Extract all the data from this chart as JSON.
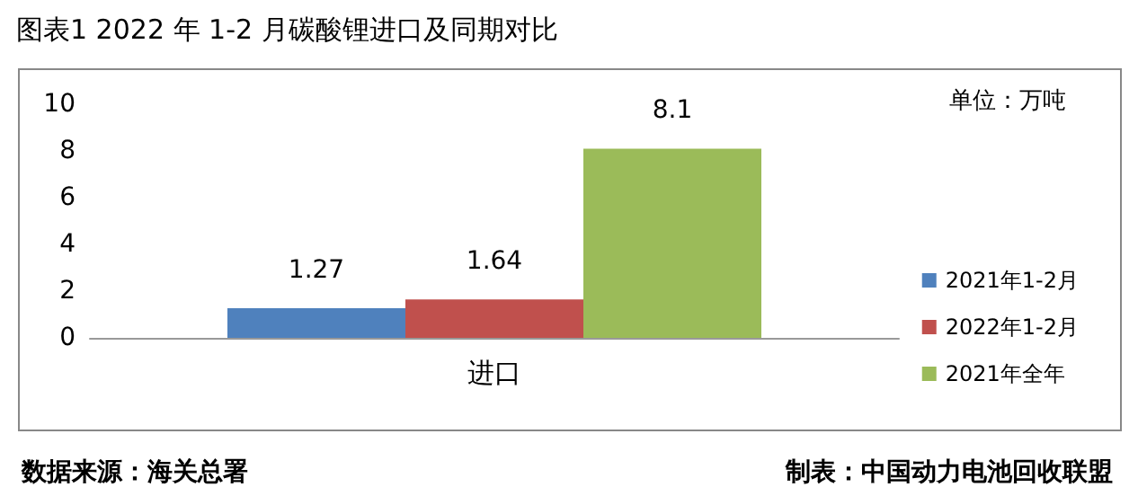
{
  "chart_data": {
    "type": "bar",
    "title": "图表1 2022 年 1-2 月碳酸锂进口及同期对比",
    "categories": [
      "进口"
    ],
    "series": [
      {
        "name": "2021年1-2月",
        "color": "#4f81bd",
        "values": [
          1.27
        ]
      },
      {
        "name": "2022年1-2月",
        "color": "#c0504d",
        "values": [
          1.64
        ]
      },
      {
        "name": "2021年全年",
        "color": "#9bbb59",
        "values": [
          8.1
        ]
      }
    ],
    "ylim": [
      0,
      10
    ],
    "yticks": [
      0,
      2,
      4,
      6,
      8,
      10
    ],
    "grid": false,
    "legend": "right",
    "data_labels": true,
    "annotations": [
      "单位：万吨",
      "数据来源：海关总署",
      "制表：中国动力电池回收联盟"
    ]
  }
}
